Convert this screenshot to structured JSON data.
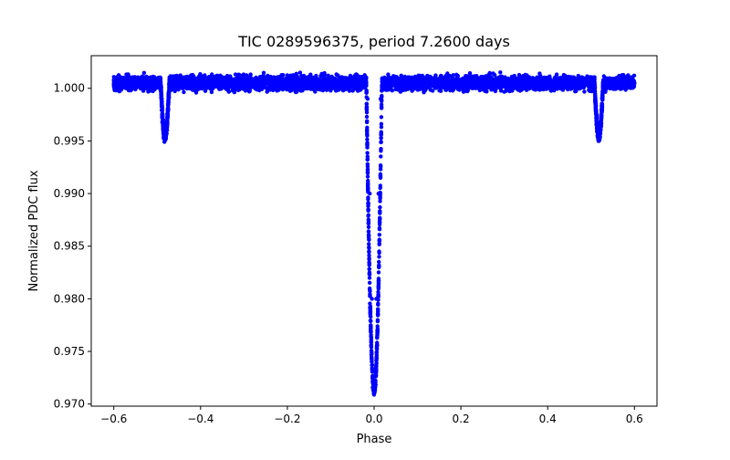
{
  "chart_data": {
    "type": "scatter",
    "title": "TIC 0289596375, period 7.2600 days",
    "xlabel": "Phase",
    "ylabel": "Normalized PDC flux",
    "xlim": [
      -0.652,
      0.652
    ],
    "ylim": [
      0.9698,
      1.0031
    ],
    "x_ticks": [
      -0.6,
      -0.4,
      -0.2,
      0.0,
      0.2,
      0.4,
      0.6
    ],
    "x_tick_labels": [
      "−0.6",
      "−0.4",
      "−0.2",
      "0.0",
      "0.2",
      "0.4",
      "0.6"
    ],
    "y_ticks": [
      0.97,
      0.975,
      0.98,
      0.985,
      0.99,
      0.995,
      1.0
    ],
    "y_tick_labels": [
      "0.970",
      "0.975",
      "0.980",
      "0.985",
      "0.990",
      "0.995",
      "1.000"
    ],
    "grid": false,
    "legend": "none",
    "marker_color": "#0000ff",
    "phase_range": [
      -0.6,
      0.6
    ],
    "baseline_flux": 1.0005,
    "baseline_scatter": 0.0006,
    "primary_eclipse": {
      "center_phase": 0.0,
      "min_flux": 0.9713,
      "half_width_phase": 0.018
    },
    "secondary_eclipses": [
      {
        "center_phase": -0.482,
        "min_flux": 0.9955,
        "half_width_phase": 0.01
      },
      {
        "center_phase": 0.518,
        "min_flux": 0.9955,
        "half_width_phase": 0.01
      }
    ],
    "sample_points": [
      [
        -0.6,
        1.0008
      ],
      [
        -0.55,
        1.0005
      ],
      [
        -0.5,
        1.0009
      ],
      [
        -0.49,
        0.9985
      ],
      [
        -0.482,
        0.9955
      ],
      [
        -0.475,
        0.9985
      ],
      [
        -0.45,
        1.0005
      ],
      [
        -0.4,
        1.0004
      ],
      [
        -0.3,
        1.0003
      ],
      [
        -0.2,
        1.0003
      ],
      [
        -0.1,
        1.0004
      ],
      [
        -0.03,
        1.0004
      ],
      [
        -0.015,
        0.999
      ],
      [
        -0.01,
        0.99
      ],
      [
        -0.005,
        0.98
      ],
      [
        0.0,
        0.9713
      ],
      [
        0.005,
        0.98
      ],
      [
        0.01,
        0.99
      ],
      [
        0.015,
        0.999
      ],
      [
        0.03,
        1.0006
      ],
      [
        0.1,
        1.0008
      ],
      [
        0.2,
        1.0007
      ],
      [
        0.3,
        1.0006
      ],
      [
        0.4,
        1.0005
      ],
      [
        0.5,
        1.0008
      ],
      [
        0.51,
        0.9985
      ],
      [
        0.518,
        0.9955
      ],
      [
        0.525,
        0.9985
      ],
      [
        0.55,
        1.0006
      ],
      [
        0.6,
        1.0005
      ]
    ]
  }
}
